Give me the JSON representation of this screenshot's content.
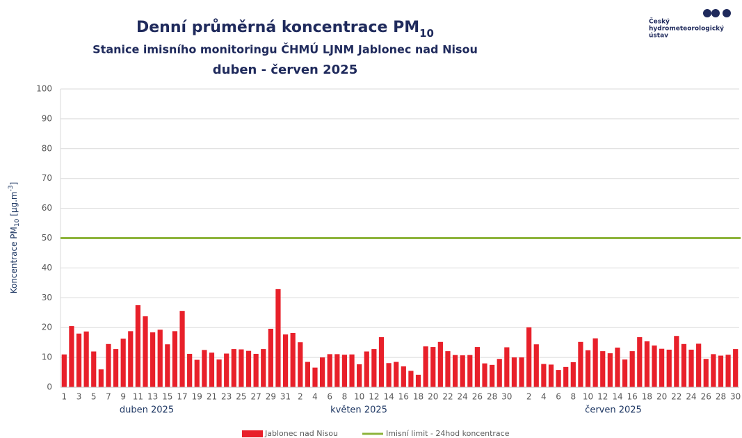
{
  "chart_data": {
    "type": "bar",
    "title": [
      "Denní průměrná koncentrace PM",
      "10"
    ],
    "subtitle": "Stanice imisního monitoringu ČHMÚ LJNM Jablonec nad Nisou",
    "period": "duben - červen 2025",
    "y_label": [
      "Koncentrace PM",
      "10",
      " [µg.m",
      "-3",
      "]"
    ],
    "logo": [
      "Český",
      "hydrometeorologický",
      "ústav"
    ],
    "months": [
      "duben 2025",
      "květen 2025",
      "červen 2025"
    ],
    "categories": [
      "1",
      null,
      "3",
      null,
      "5",
      null,
      "7",
      null,
      "9",
      null,
      "11",
      null,
      "13",
      null,
      "15",
      null,
      "17",
      null,
      "19",
      null,
      "21",
      null,
      "23",
      null,
      "25",
      null,
      "27",
      null,
      "29",
      null,
      "31",
      null,
      "2",
      null,
      "4",
      null,
      "6",
      null,
      "8",
      null,
      "10",
      null,
      "12",
      null,
      "14",
      null,
      "16",
      null,
      "18",
      null,
      "20",
      null,
      "22",
      null,
      "24",
      null,
      "26",
      null,
      "28",
      null,
      "30",
      null,
      null,
      "2",
      null,
      "4",
      null,
      "6",
      null,
      "8",
      null,
      "10",
      null,
      "12",
      null,
      "14",
      null,
      "16",
      null,
      "18",
      null,
      "20",
      null,
      "22",
      null,
      "24",
      null,
      "26",
      null,
      "28",
      null,
      "30"
    ],
    "series": [
      {
        "name": "Jablonec nad Nisou",
        "color": "#e8202a",
        "values": [
          11,
          20.5,
          18,
          18.7,
          12,
          6,
          14.5,
          12.8,
          16.3,
          18.8,
          27.5,
          23.8,
          18.4,
          19.3,
          14.4,
          18.8,
          25.6,
          11.2,
          9.2,
          12.5,
          11.6,
          9.3,
          11.3,
          12.8,
          12.7,
          12.2,
          11.2,
          12.8,
          19.6,
          32.9,
          17.7,
          18.2,
          15.1,
          8.5,
          6.6,
          10,
          11.1,
          11.1,
          10.9,
          11,
          7.7,
          12,
          12.8,
          16.8,
          8.1,
          8.5,
          7,
          5.5,
          4.2,
          13.7,
          13.5,
          15.2,
          12.1,
          10.8,
          10.7,
          10.8,
          13.5,
          8,
          7.5,
          9.5,
          13.4,
          10,
          10,
          20.1,
          14.4,
          7.8,
          7.6,
          5.8,
          6.8,
          8.4,
          15.2,
          12.4,
          16.4,
          12.1,
          11.4,
          13.3,
          9.3,
          12.1,
          16.8,
          15.4,
          14,
          12.9,
          12.6,
          17.2,
          14.5,
          12.6,
          14.6,
          9.5,
          11.1,
          10.6,
          10.9,
          12.8
        ]
      }
    ],
    "limit": {
      "name": "Imisní limit - 24hod koncentrace",
      "value": 50,
      "color": "#8db33a"
    },
    "ylim": [
      0,
      100
    ],
    "yticks": [
      0,
      10,
      20,
      30,
      40,
      50,
      60,
      70,
      80,
      90,
      100
    ],
    "grid": true,
    "legend": "bottom"
  }
}
